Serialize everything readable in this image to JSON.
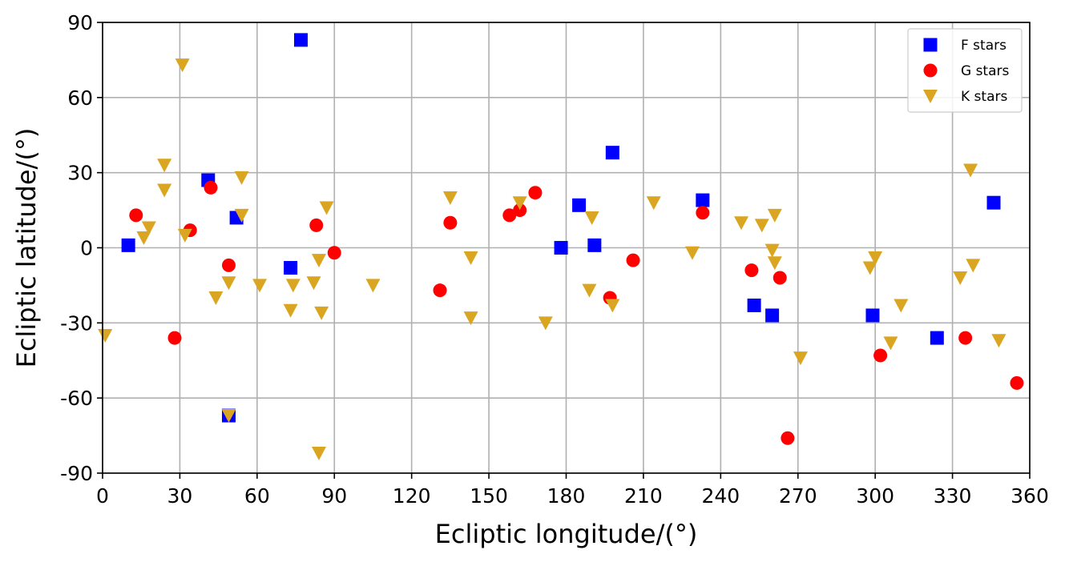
{
  "chart_data": {
    "type": "scatter",
    "title": "",
    "xlabel": "Ecliptic longitude/(°)",
    "ylabel": "Ecliptic latitude/(°)",
    "xlim": [
      0,
      360
    ],
    "ylim": [
      -90,
      90
    ],
    "xticks": [
      0,
      30,
      60,
      90,
      120,
      150,
      180,
      210,
      240,
      270,
      300,
      330,
      360
    ],
    "yticks": [
      90,
      60,
      30,
      0,
      -30,
      -60,
      -90
    ],
    "grid": true,
    "legend_position": "top-right",
    "series": [
      {
        "name": "F stars",
        "marker": "square",
        "color": "#0000ff",
        "points": [
          [
            10,
            1
          ],
          [
            41,
            27
          ],
          [
            52,
            12
          ],
          [
            49,
            -67
          ],
          [
            73,
            -8
          ],
          [
            77,
            83
          ],
          [
            178,
            0
          ],
          [
            185,
            17
          ],
          [
            191,
            1
          ],
          [
            198,
            38
          ],
          [
            233,
            19
          ],
          [
            253,
            -23
          ],
          [
            260,
            -27
          ],
          [
            299,
            -27
          ],
          [
            324,
            -36
          ],
          [
            346,
            18
          ]
        ]
      },
      {
        "name": "G stars",
        "marker": "circle",
        "color": "#ff0000",
        "points": [
          [
            13,
            13
          ],
          [
            28,
            -36
          ],
          [
            34,
            7
          ],
          [
            42,
            24
          ],
          [
            49,
            -7
          ],
          [
            83,
            9
          ],
          [
            90,
            -2
          ],
          [
            131,
            -17
          ],
          [
            135,
            10
          ],
          [
            158,
            13
          ],
          [
            162,
            15
          ],
          [
            168,
            22
          ],
          [
            197,
            -20
          ],
          [
            206,
            -5
          ],
          [
            233,
            14
          ],
          [
            252,
            -9
          ],
          [
            263,
            -12
          ],
          [
            266,
            -76
          ],
          [
            302,
            -43
          ],
          [
            335,
            -36
          ],
          [
            355,
            -54
          ]
        ]
      },
      {
        "name": "K stars",
        "marker": "triangle-down",
        "color": "#daa520",
        "points": [
          [
            1,
            -35
          ],
          [
            16,
            4
          ],
          [
            18,
            8
          ],
          [
            24,
            33
          ],
          [
            24,
            23
          ],
          [
            31,
            73
          ],
          [
            32,
            5
          ],
          [
            44,
            -20
          ],
          [
            49,
            -14
          ],
          [
            49,
            -67
          ],
          [
            54,
            28
          ],
          [
            54,
            13
          ],
          [
            61,
            -15
          ],
          [
            73,
            -25
          ],
          [
            74,
            -15
          ],
          [
            82,
            -14
          ],
          [
            84,
            -5
          ],
          [
            84,
            -82
          ],
          [
            85,
            -26
          ],
          [
            87,
            16
          ],
          [
            105,
            -15
          ],
          [
            135,
            20
          ],
          [
            143,
            -4
          ],
          [
            143,
            -28
          ],
          [
            162,
            18
          ],
          [
            172,
            -30
          ],
          [
            189,
            -17
          ],
          [
            190,
            12
          ],
          [
            198,
            -23
          ],
          [
            214,
            18
          ],
          [
            229,
            -2
          ],
          [
            248,
            10
          ],
          [
            256,
            9
          ],
          [
            260,
            -1
          ],
          [
            261,
            13
          ],
          [
            261,
            -6
          ],
          [
            271,
            -44
          ],
          [
            298,
            -8
          ],
          [
            300,
            -4
          ],
          [
            306,
            -38
          ],
          [
            310,
            -23
          ],
          [
            333,
            -12
          ],
          [
            337,
            31
          ],
          [
            338,
            -7
          ],
          [
            348,
            -37
          ]
        ]
      }
    ]
  }
}
